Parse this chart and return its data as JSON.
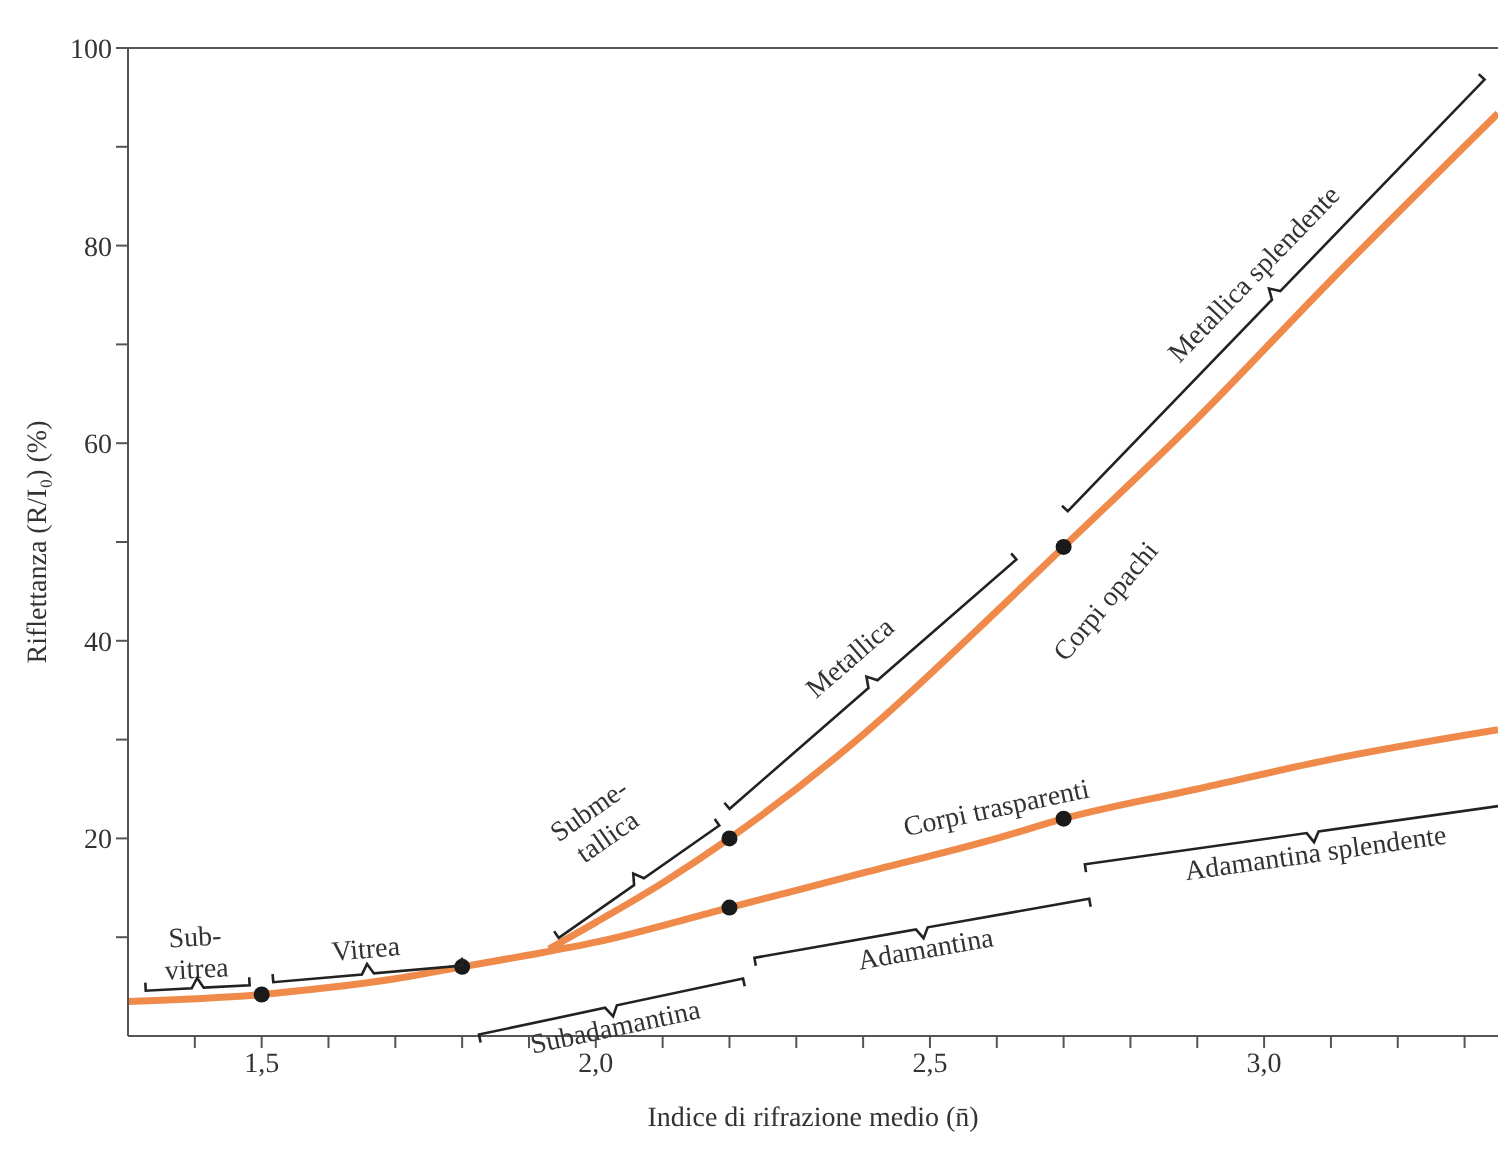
{
  "chart_data": {
    "type": "line",
    "xlabel": "Indice di rifrazione medio (n̄)",
    "ylabel": "Riflettanza (R/I₀) (%)",
    "xlim": [
      1.3,
      3.35
    ],
    "ylim": [
      0,
      100
    ],
    "xticks": [
      {
        "value": 1.4,
        "label": null
      },
      {
        "value": 1.5,
        "label": "1,5"
      },
      {
        "value": 1.6,
        "label": null
      },
      {
        "value": 1.7,
        "label": null
      },
      {
        "value": 1.8,
        "label": null
      },
      {
        "value": 1.9,
        "label": null
      },
      {
        "value": 2.0,
        "label": "2,0"
      },
      {
        "value": 2.1,
        "label": null
      },
      {
        "value": 2.2,
        "label": null
      },
      {
        "value": 2.3,
        "label": null
      },
      {
        "value": 2.4,
        "label": null
      },
      {
        "value": 2.5,
        "label": "2,5"
      },
      {
        "value": 2.6,
        "label": null
      },
      {
        "value": 2.7,
        "label": null
      },
      {
        "value": 2.8,
        "label": null
      },
      {
        "value": 2.9,
        "label": null
      },
      {
        "value": 3.0,
        "label": "3,0"
      },
      {
        "value": 3.1,
        "label": null
      },
      {
        "value": 3.2,
        "label": null
      },
      {
        "value": 3.3,
        "label": null
      }
    ],
    "yticks": [
      {
        "value": 10,
        "label": null
      },
      20,
      {
        "value": 30,
        "label": null
      },
      40,
      {
        "value": 50,
        "label": null
      },
      60,
      {
        "value": 70,
        "label": null
      },
      80,
      {
        "value": 90,
        "label": null
      },
      100
    ],
    "grid": false,
    "line_style": "solid",
    "series": [
      {
        "name": "Corpi opachi",
        "color": "#f08a4b",
        "x": [
          1.93,
          2.0,
          2.1,
          2.2,
          2.4,
          2.6,
          2.7,
          2.9,
          3.1,
          3.35
        ],
        "values": [
          8.8,
          11.5,
          15.5,
          20,
          30.5,
          43,
          49.5,
          62.5,
          76.5,
          93.4
        ]
      },
      {
        "name": "Corpi trasparenti",
        "color": "#f08a4b",
        "x": [
          1.3,
          1.5,
          1.6,
          1.7,
          1.8,
          1.9,
          2.0,
          2.2,
          2.4,
          2.6,
          2.7,
          2.9,
          3.1,
          3.35
        ],
        "values": [
          3.5,
          4.2,
          4.9,
          5.8,
          7,
          8.2,
          9.5,
          13,
          16.5,
          20,
          22,
          25,
          28,
          31
        ]
      },
      {
        "type": "scatter",
        "color": "#1a1a1a",
        "marker": "circle",
        "x": [
          1.5,
          1.8,
          2.2,
          2.2,
          2.7,
          2.7
        ],
        "values": [
          4.2,
          7,
          13,
          20,
          22,
          49.5
        ]
      }
    ],
    "annotations": [
      "Sub-\nvitrea",
      "Vitrea",
      "Subme-\ntallica",
      "Metallica",
      "Metallica splendente",
      "Subadamantina",
      "Adamantina",
      "Adamantina splendente"
    ]
  }
}
